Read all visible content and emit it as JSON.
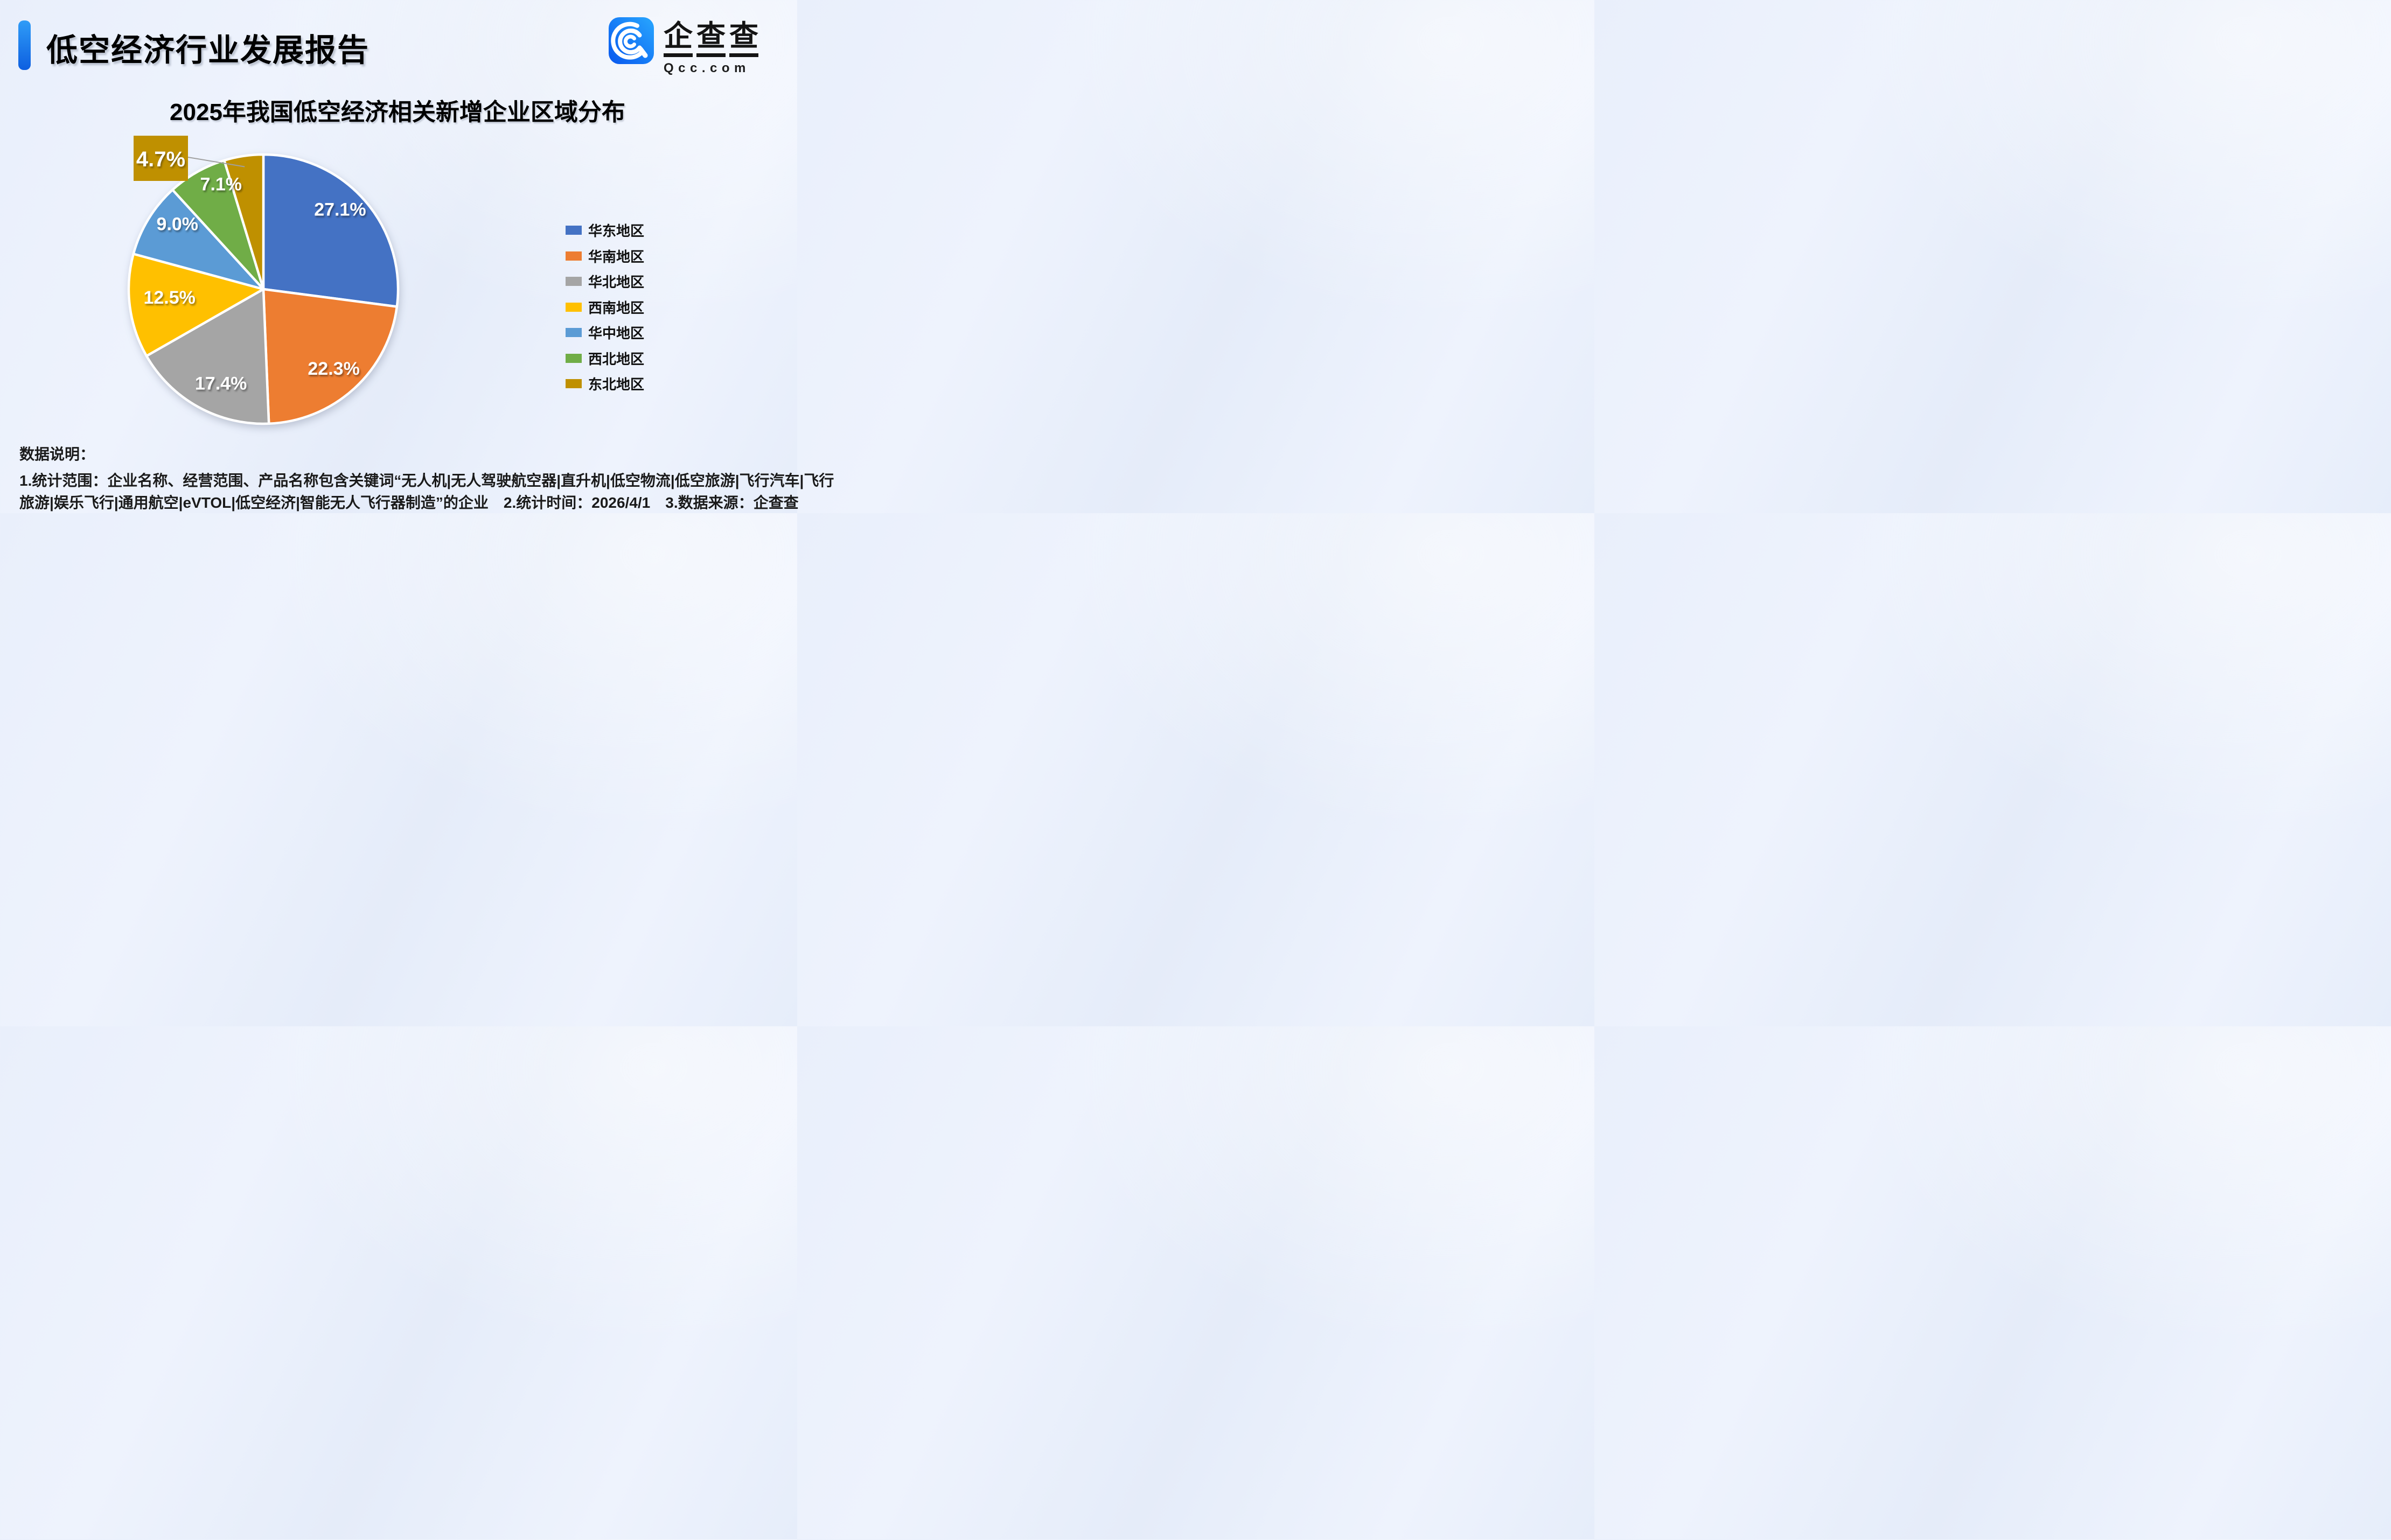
{
  "header": {
    "title": "低空经济行业发展报告"
  },
  "logo": {
    "brand_chars": [
      "企",
      "查",
      "查"
    ],
    "domain": "Qcc.com",
    "icon_gradient": [
      "#0857ee",
      "#28a7ff"
    ]
  },
  "chart_data": {
    "type": "pie",
    "title": "2025年我国低空经济相关新增企业区域分布",
    "start_angle_deg": 0,
    "direction": "clockwise",
    "legend_position": "right",
    "unit": "%",
    "slices": [
      {
        "label": "华东地区",
        "value": 27.1,
        "display": "27.1%",
        "color": "#4472C4"
      },
      {
        "label": "华南地区",
        "value": 22.3,
        "display": "22.3%",
        "color": "#ED7D31"
      },
      {
        "label": "华北地区",
        "value": 17.4,
        "display": "17.4%",
        "color": "#A5A5A5"
      },
      {
        "label": "西南地区",
        "value": 12.5,
        "display": "12.5%",
        "color": "#FFC000"
      },
      {
        "label": "华中地区",
        "value": 9.0,
        "display": "9.0%",
        "color": "#5B9BD5"
      },
      {
        "label": "西北地区",
        "value": 7.1,
        "display": "7.1%",
        "color": "#70AD47"
      },
      {
        "label": "东北地区",
        "value": 4.7,
        "display": "4.7%",
        "color": "#BF9000",
        "callout": true
      }
    ]
  },
  "footnotes": {
    "heading": "数据说明：",
    "line1": "1.统计范围：企业名称、经营范围、产品名称包含关键词“无人机|无人驾驶航空器|直升机|低空物流|低空旅游|飞行汽车|飞行",
    "line2": "旅游|娱乐飞行|通用航空|eVTOL|低空经济|智能无人飞行器制造”的企业　2.统计时间：2026/4/1　3.数据来源：企查查"
  }
}
